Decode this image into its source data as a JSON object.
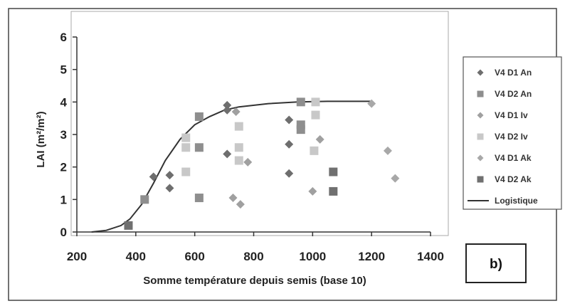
{
  "chart_data": {
    "type": "scatter",
    "xlabel": "Somme température  depuis semis (base 10)",
    "ylabel": "LAI (m²/m²)",
    "xlim": [
      200,
      1400
    ],
    "ylim": [
      0,
      6
    ],
    "xticks": [
      "200",
      "400",
      "600",
      "800",
      "1000",
      "1200",
      "1400"
    ],
    "yticks": [
      "0",
      "1",
      "2",
      "3",
      "4",
      "5",
      "6"
    ],
    "grid": false,
    "legend_position": "right",
    "panel_label": "b)",
    "series": [
      {
        "name": "V4 D1 An",
        "marker": "diamond",
        "color": "#6e6e6e",
        "points": [
          [
            460,
            1.7
          ],
          [
            515,
            1.75
          ],
          [
            515,
            1.35
          ],
          [
            710,
            3.9
          ],
          [
            710,
            3.75
          ],
          [
            710,
            2.4
          ],
          [
            920,
            3.45
          ],
          [
            920,
            2.7
          ],
          [
            920,
            1.8
          ]
        ]
      },
      {
        "name": "V4 D2 An",
        "marker": "square",
        "color": "#8e8e8e",
        "points": [
          [
            430,
            1.0
          ],
          [
            615,
            3.55
          ],
          [
            615,
            2.6
          ],
          [
            615,
            1.05
          ],
          [
            960,
            4.0
          ],
          [
            960,
            3.3
          ],
          [
            960,
            3.15
          ]
        ]
      },
      {
        "name": "V4 D1 Iv",
        "marker": "diamond",
        "color": "#a0a0a0",
        "points": [
          [
            740,
            3.7
          ],
          [
            730,
            1.05
          ],
          [
            755,
            0.85
          ],
          [
            780,
            2.15
          ],
          [
            1025,
            2.85
          ],
          [
            1000,
            1.25
          ]
        ]
      },
      {
        "name": "V4 D2 Iv",
        "marker": "square",
        "color": "#c8c8c8",
        "points": [
          [
            570,
            2.9
          ],
          [
            570,
            2.6
          ],
          [
            570,
            1.85
          ],
          [
            750,
            3.25
          ],
          [
            750,
            2.6
          ],
          [
            750,
            2.2
          ],
          [
            1010,
            4.0
          ],
          [
            1010,
            3.6
          ],
          [
            1005,
            2.5
          ]
        ]
      },
      {
        "name": "V4 D1 Ak",
        "marker": "diamond",
        "color": "#a8a8a8",
        "points": [
          [
            1200,
            3.95
          ],
          [
            1255,
            2.5
          ],
          [
            1280,
            1.65
          ]
        ]
      },
      {
        "name": "V4 D2 Ak",
        "marker": "square",
        "color": "#707070",
        "points": [
          [
            375,
            0.2
          ],
          [
            1070,
            1.85
          ],
          [
            1070,
            1.25
          ]
        ]
      },
      {
        "name": "Logistique",
        "marker": "line",
        "color": "#333333",
        "points": [
          [
            250,
            0.0
          ],
          [
            300,
            0.05
          ],
          [
            350,
            0.2
          ],
          [
            380,
            0.4
          ],
          [
            420,
            0.85
          ],
          [
            460,
            1.5
          ],
          [
            500,
            2.2
          ],
          [
            550,
            2.85
          ],
          [
            600,
            3.3
          ],
          [
            650,
            3.55
          ],
          [
            700,
            3.75
          ],
          [
            750,
            3.85
          ],
          [
            850,
            3.95
          ],
          [
            950,
            4.0
          ],
          [
            1050,
            4.02
          ],
          [
            1200,
            4.02
          ]
        ]
      }
    ]
  }
}
